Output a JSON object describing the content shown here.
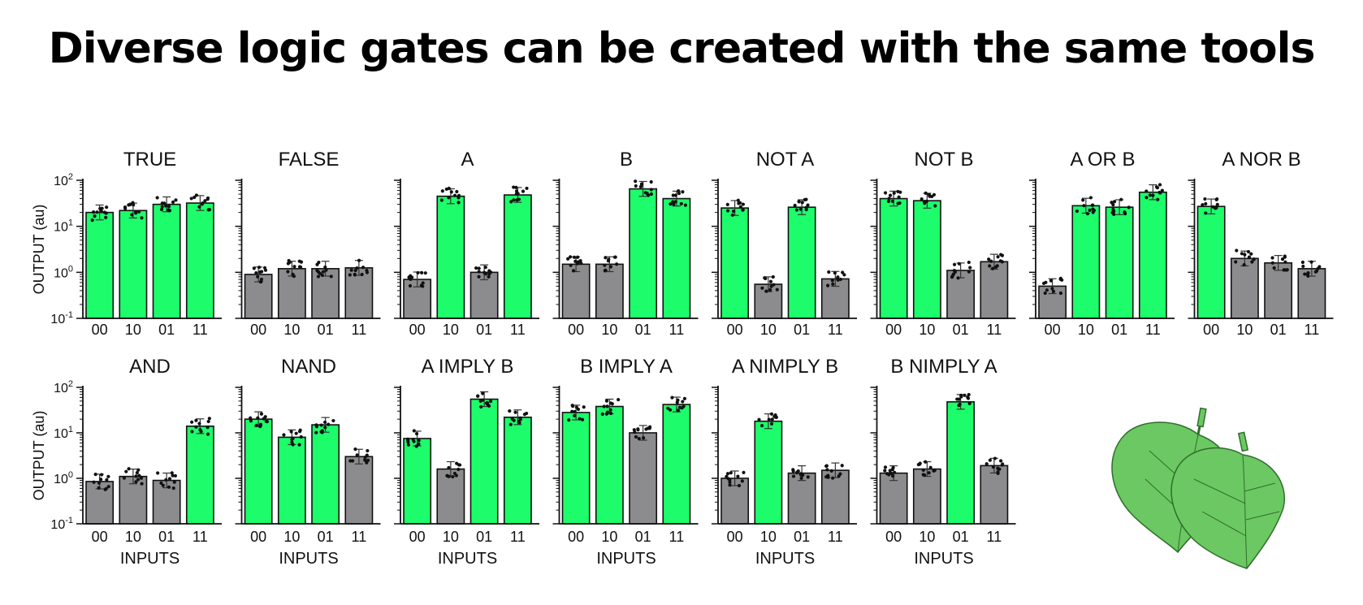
{
  "slide": {
    "title": "Diverse logic gates can be created with the same tools"
  },
  "colors": {
    "on_bar": "#1dfc6a",
    "off_bar": "#8c8c8f",
    "bar_outline": "#111111",
    "dot": "#111111",
    "leaf_fill": "#6cc862",
    "leaf_vein": "#2f6e2c"
  },
  "icons": {
    "decoration": "green-leaves-illustration"
  },
  "chart_data": [
    {
      "type": "bar",
      "title": "TRUE",
      "categories": [
        "00",
        "10",
        "01",
        "11"
      ],
      "values": [
        20,
        22,
        30,
        32
      ],
      "on": [
        true,
        true,
        true,
        true
      ],
      "yscale": "log",
      "ylim": [
        0.1,
        100
      ],
      "yticks": [
        "10-1",
        "100",
        "101",
        "102"
      ],
      "ylabel": "OUTPUT (au)",
      "xlabel": ""
    },
    {
      "type": "bar",
      "title": "FALSE",
      "categories": [
        "00",
        "10",
        "01",
        "11"
      ],
      "values": [
        0.9,
        1.2,
        1.2,
        1.25
      ],
      "on": [
        false,
        false,
        false,
        false
      ],
      "yscale": "log",
      "ylim": [
        0.1,
        100
      ],
      "xlabel": ""
    },
    {
      "type": "bar",
      "title": "A",
      "categories": [
        "00",
        "10",
        "01",
        "11"
      ],
      "values": [
        0.7,
        45,
        1.0,
        48
      ],
      "on": [
        false,
        true,
        false,
        true
      ],
      "yscale": "log",
      "ylim": [
        0.1,
        100
      ],
      "xlabel": ""
    },
    {
      "type": "bar",
      "title": "B",
      "categories": [
        "00",
        "10",
        "01",
        "11"
      ],
      "values": [
        1.5,
        1.5,
        65,
        40
      ],
      "on": [
        false,
        false,
        true,
        true
      ],
      "yscale": "log",
      "ylim": [
        0.1,
        100
      ],
      "xlabel": ""
    },
    {
      "type": "bar",
      "title": "NOT A",
      "categories": [
        "00",
        "10",
        "01",
        "11"
      ],
      "values": [
        25,
        0.55,
        26,
        0.72
      ],
      "on": [
        true,
        false,
        true,
        false
      ],
      "yscale": "log",
      "ylim": [
        0.1,
        100
      ],
      "xlabel": ""
    },
    {
      "type": "bar",
      "title": "NOT B",
      "categories": [
        "00",
        "10",
        "01",
        "11"
      ],
      "values": [
        40,
        36,
        1.1,
        1.7
      ],
      "on": [
        true,
        true,
        false,
        false
      ],
      "yscale": "log",
      "ylim": [
        0.1,
        100
      ],
      "xlabel": ""
    },
    {
      "type": "bar",
      "title": "A OR B",
      "categories": [
        "00",
        "10",
        "01",
        "11"
      ],
      "values": [
        0.5,
        28,
        26,
        55
      ],
      "on": [
        false,
        true,
        true,
        true
      ],
      "yscale": "log",
      "ylim": [
        0.1,
        100
      ],
      "xlabel": ""
    },
    {
      "type": "bar",
      "title": "A NOR B",
      "categories": [
        "00",
        "10",
        "01",
        "11"
      ],
      "values": [
        27,
        2.0,
        1.6,
        1.2
      ],
      "on": [
        true,
        false,
        false,
        false
      ],
      "yscale": "log",
      "ylim": [
        0.1,
        100
      ],
      "xlabel": ""
    },
    {
      "type": "bar",
      "title": "AND",
      "categories": [
        "00",
        "10",
        "01",
        "11"
      ],
      "values": [
        0.85,
        1.1,
        0.9,
        14
      ],
      "on": [
        false,
        false,
        false,
        true
      ],
      "yscale": "log",
      "ylim": [
        0.1,
        100
      ],
      "yticks": [
        "10-1",
        "100",
        "101",
        "102"
      ],
      "ylabel": "OUTPUT (au)",
      "xlabel": "INPUTS"
    },
    {
      "type": "bar",
      "title": "NAND",
      "categories": [
        "00",
        "10",
        "01",
        "11"
      ],
      "values": [
        20,
        8,
        15,
        3
      ],
      "on": [
        true,
        true,
        true,
        false
      ],
      "yscale": "log",
      "ylim": [
        0.1,
        100
      ],
      "xlabel": "INPUTS"
    },
    {
      "type": "bar",
      "title": "A IMPLY B",
      "categories": [
        "00",
        "10",
        "01",
        "11"
      ],
      "values": [
        7.5,
        1.6,
        55,
        22
      ],
      "on": [
        true,
        false,
        true,
        true
      ],
      "yscale": "log",
      "ylim": [
        0.1,
        100
      ],
      "xlabel": "INPUTS"
    },
    {
      "type": "bar",
      "title": "B IMPLY A",
      "categories": [
        "00",
        "10",
        "01",
        "11"
      ],
      "values": [
        28,
        38,
        10,
        42
      ],
      "on": [
        true,
        true,
        false,
        true
      ],
      "yscale": "log",
      "ylim": [
        0.1,
        100
      ],
      "xlabel": "INPUTS"
    },
    {
      "type": "bar",
      "title": "A NIMPLY B",
      "categories": [
        "00",
        "10",
        "01",
        "11"
      ],
      "values": [
        1.0,
        18,
        1.3,
        1.5
      ],
      "on": [
        false,
        true,
        false,
        false
      ],
      "yscale": "log",
      "ylim": [
        0.1,
        100
      ],
      "xlabel": "INPUTS"
    },
    {
      "type": "bar",
      "title": "B NIMPLY A",
      "categories": [
        "00",
        "10",
        "01",
        "11"
      ],
      "values": [
        1.3,
        1.6,
        48,
        1.9
      ],
      "on": [
        false,
        false,
        true,
        false
      ],
      "yscale": "log",
      "ylim": [
        0.1,
        100
      ],
      "xlabel": "INPUTS"
    }
  ]
}
